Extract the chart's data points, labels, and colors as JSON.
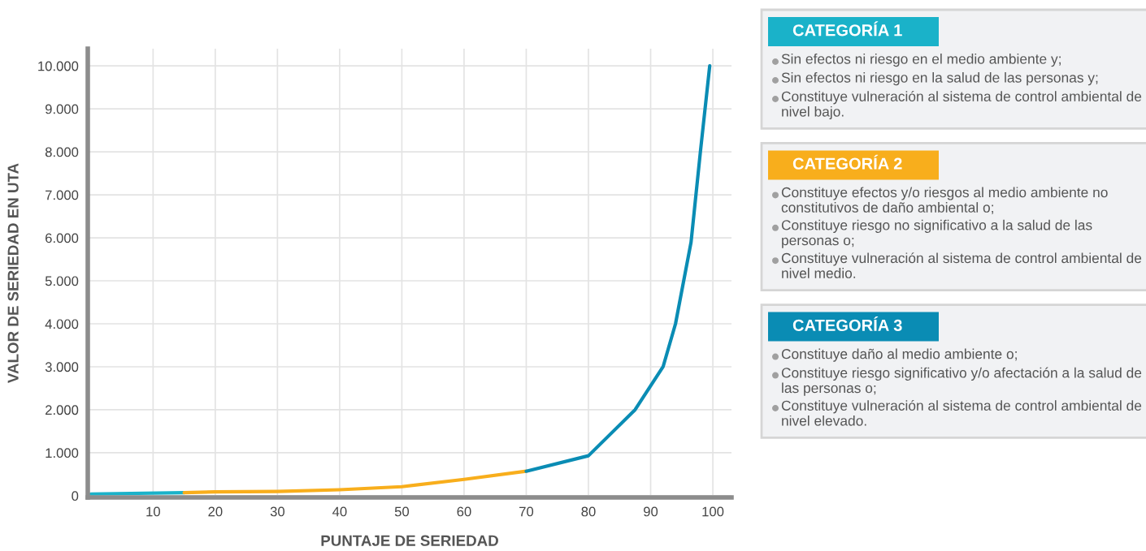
{
  "chart_data": {
    "type": "line",
    "xlabel": "PUNTAJE DE SERIEDAD",
    "ylabel": "VALOR DE SERIEDAD EN UTA",
    "series": [
      {
        "name": "CATEGORÍA 1",
        "color": "#1ab2c9",
        "x": [
          0,
          15
        ],
        "values": [
          40,
          70
        ]
      },
      {
        "name": "CATEGORÍA 2",
        "color": "#f8ae1c",
        "x": [
          15,
          20,
          30,
          40,
          50,
          60,
          70
        ],
        "values": [
          70,
          90,
          100,
          140,
          210,
          380,
          570
        ]
      },
      {
        "name": "CATEGORÍA 3",
        "color": "#0a8cb4",
        "x": [
          70,
          80,
          87.5,
          92,
          94,
          96.5,
          98,
          99.5
        ],
        "values": [
          570,
          930,
          2000,
          3000,
          4000,
          5900,
          8000,
          10000
        ]
      }
    ],
    "annotations": [
      "Sin efectos ni riesgo en el medio ambiente y;",
      "Sin efectos ni riesgo en la salud de las personas y;",
      "Constituye vulneración al sistema de control ambiental de nivel bajo.",
      "Constituye efectos y/o riesgos al medio ambiente no constitutivos de daño ambiental o;",
      "Constituye riesgo no significativo a la salud de las personas o;",
      "Constituye vulneración al sistema de control ambiental de nivel medio.",
      "Constituye daño al medio ambiente o;",
      "Constituye riesgo significativo y/o afectación a la salud de las personas o;",
      "Constituye vulneración al sistema de control ambiental de nivel elevado."
    ],
    "xlim": [
      -0.5,
      103
    ],
    "xticks": [
      10,
      20,
      30,
      40,
      50,
      60,
      70,
      80,
      90,
      100
    ],
    "ylim": [
      -40,
      10400
    ],
    "yticks": [
      0,
      {
        "value": 1000,
        "label": "1.000"
      },
      {
        "value": 2000,
        "label": "2.000"
      },
      {
        "value": 3000,
        "label": "3.000"
      },
      {
        "value": 4000,
        "label": "4.000"
      },
      {
        "value": 5000,
        "label": "5.000"
      },
      {
        "value": 6000,
        "label": "6.000"
      },
      {
        "value": 7000,
        "label": "7.000"
      },
      {
        "value": 8000,
        "label": "8.000"
      },
      {
        "value": 9000,
        "label": "9.000"
      },
      {
        "value": 10000,
        "label": "10.000"
      }
    ],
    "grid": true,
    "legend": "right",
    "marker": "none",
    "line_style": "solid"
  }
}
